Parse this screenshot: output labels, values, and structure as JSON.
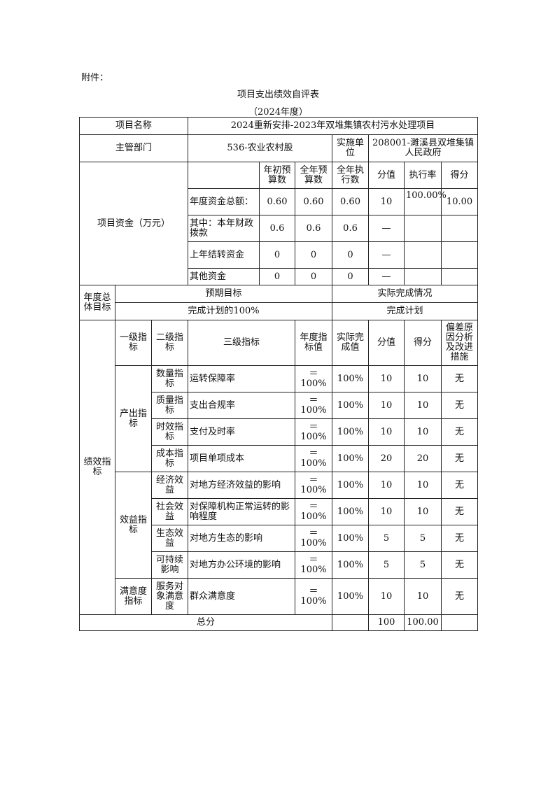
{
  "attachment_label": "附件：",
  "title": "项目支出绩效自评表",
  "year": "（2024年度）",
  "project": {
    "name_label": "项目名称",
    "name": "2024重新安排-2023年双堆集镇农村污水处理项目",
    "dept_label": "主管部门",
    "dept": "536-农业农村股",
    "unit_label": "实施单位",
    "unit": "208001-濉溪县双堆集镇人民政府"
  },
  "funds": {
    "label": "项目资金（万元）",
    "headers": [
      "年初预算数",
      "全年预算数",
      "全年执行数",
      "分值",
      "执行率",
      "得分"
    ],
    "rows": [
      {
        "name": "年度资金总额：",
        "v": [
          "0.60",
          "0.60",
          "0.60",
          "10",
          "100.00%",
          "10.00"
        ]
      },
      {
        "name": "其中：本年财政拨款",
        "v": [
          "0.6",
          "0.6",
          "0.6",
          "—",
          "",
          ""
        ]
      },
      {
        "name": "上年结转资金",
        "v": [
          "0",
          "0",
          "0",
          "—",
          "",
          ""
        ]
      },
      {
        "name": "其他资金",
        "v": [
          "0",
          "0",
          "0",
          "—",
          "",
          ""
        ]
      }
    ]
  },
  "goal": {
    "label": "年度总体目标",
    "expected_label": "预期目标",
    "actual_label": "实际完成情况",
    "expected": "完成计划的100%",
    "actual": "完成计划"
  },
  "perf": {
    "label": "绩效指标",
    "headers": [
      "一级指标",
      "二级指标",
      "三级指标",
      "年度指标值",
      "实际完成值",
      "分值",
      "得分",
      "偏差原因分析及改进措施"
    ],
    "groups": [
      "产出指标",
      "效益指标",
      "满意度指标"
    ],
    "rows": [
      {
        "l2": "数量指标",
        "l3": "运转保障率",
        "target": "＝100%",
        "actual": "100%",
        "score": "10",
        "got": "10",
        "note": "无"
      },
      {
        "l2": "质量指标",
        "l3": "支出合规率",
        "target": "＝100%",
        "actual": "100%",
        "score": "10",
        "got": "10",
        "note": "无"
      },
      {
        "l2": "时效指标",
        "l3": "支付及时率",
        "target": "＝100%",
        "actual": "100%",
        "score": "10",
        "got": "10",
        "note": "无"
      },
      {
        "l2": "成本指标",
        "l3": "项目单项成本",
        "target": "＝100%",
        "actual": "100%",
        "score": "20",
        "got": "20",
        "note": "无"
      },
      {
        "l2": "经济效益",
        "l3": "对地方经济效益的影响",
        "target": "＝100%",
        "actual": "100%",
        "score": "10",
        "got": "10",
        "note": "无"
      },
      {
        "l2": "社会效益",
        "l3": "对保障机构正常运转的影响程度",
        "target": "＝100%",
        "actual": "100%",
        "score": "10",
        "got": "10",
        "note": "无"
      },
      {
        "l2": "生态效益",
        "l3": "对地方生态的影响",
        "target": "＝100%",
        "actual": "100%",
        "score": "5",
        "got": "5",
        "note": "无"
      },
      {
        "l2": "可持续影响",
        "l3": "对地方办公环境的影响",
        "target": "＝100%",
        "actual": "100%",
        "score": "5",
        "got": "5",
        "note": "无"
      },
      {
        "l2": "服务对象满意度",
        "l3": "群众满意度",
        "target": "＝100%",
        "actual": "100%",
        "score": "10",
        "got": "10",
        "note": "无"
      }
    ]
  },
  "total": {
    "label": "总分",
    "score": "100",
    "got": "100.00"
  }
}
